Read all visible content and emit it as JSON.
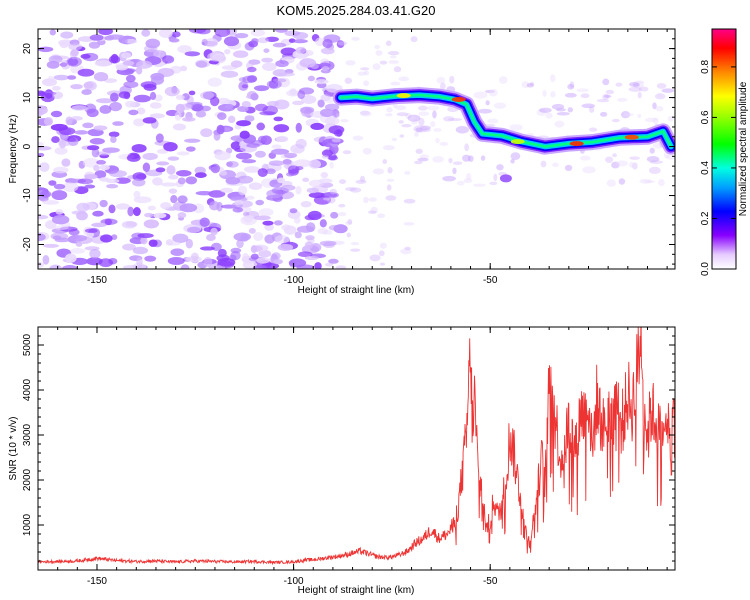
{
  "chart_data": [
    {
      "type": "heatmap",
      "title": "KOM5.2025.284.03.41.G20",
      "xlabel": "Height of straight line (km)",
      "ylabel": "Frequency (Hz)",
      "xlim": [
        -165,
        -3
      ],
      "ylim": [
        -25,
        24
      ],
      "xticks": [
        "-150",
        "-100",
        "-50"
      ],
      "xtick_values": [
        -150,
        -100,
        -50
      ],
      "yticks": [
        "20",
        "10",
        "0",
        "-10",
        "-20"
      ],
      "ytick_values": [
        20,
        10,
        0,
        -10,
        -20
      ],
      "ridge": [
        {
          "x": -88,
          "y": 10
        },
        {
          "x": -84,
          "y": 10.2
        },
        {
          "x": -80,
          "y": 9.8
        },
        {
          "x": -74,
          "y": 10.3
        },
        {
          "x": -68,
          "y": 10.5
        },
        {
          "x": -63,
          "y": 10.2
        },
        {
          "x": -59,
          "y": 9.6
        },
        {
          "x": -56,
          "y": 8.6
        },
        {
          "x": -54,
          "y": 5
        },
        {
          "x": -52,
          "y": 2.6
        },
        {
          "x": -47,
          "y": 2.2
        },
        {
          "x": -42,
          "y": 1
        },
        {
          "x": -36,
          "y": 0
        },
        {
          "x": -30,
          "y": 0.6
        },
        {
          "x": -24,
          "y": 0.9
        },
        {
          "x": -17,
          "y": 1.8
        },
        {
          "x": -10,
          "y": 2
        },
        {
          "x": -6,
          "y": 3.1
        },
        {
          "x": -4,
          "y": 0
        }
      ],
      "colorbar": {
        "label": "Normalized spectral amplitude",
        "ticks": [
          "0.0",
          "0.2",
          "0.4",
          "0.6",
          "0.8"
        ],
        "tick_values": [
          0,
          0.2,
          0.4,
          0.6,
          0.8
        ],
        "range": [
          0,
          0.95
        ]
      }
    },
    {
      "type": "line",
      "title": "",
      "xlabel": "Height of straight line (km)",
      "ylabel": "SNR (10 * v/v)",
      "xlim": [
        -165,
        -3
      ],
      "ylim": [
        0,
        5400
      ],
      "xticks": [
        "-150",
        "-100",
        "-50"
      ],
      "xtick_values": [
        -150,
        -100,
        -50
      ],
      "yticks": [
        "1000",
        "2000",
        "3000",
        "4000",
        "5000"
      ],
      "ytick_values": [
        1000,
        2000,
        3000,
        4000,
        5000
      ],
      "series": [
        {
          "name": "SNR",
          "color": "#ee3333",
          "x": [
            -165,
            -160,
            -155,
            -150,
            -145,
            -140,
            -135,
            -130,
            -125,
            -120,
            -115,
            -110,
            -105,
            -100,
            -97,
            -95,
            -93,
            -91,
            -89,
            -87,
            -85,
            -83,
            -81,
            -79,
            -77,
            -75,
            -73,
            -71,
            -69,
            -67,
            -65,
            -63,
            -61,
            -59,
            -58,
            -57,
            -56,
            -55.5,
            -55,
            -54.5,
            -54,
            -53.5,
            -53,
            -52,
            -51,
            -50,
            -49,
            -48,
            -47,
            -46,
            -45,
            -44,
            -43,
            -42,
            -41,
            -40,
            -39,
            -38,
            -37,
            -36,
            -35,
            -34.5,
            -34,
            -33,
            -32,
            -31,
            -30,
            -29,
            -28,
            -27,
            -26,
            -25,
            -24,
            -23,
            -22,
            -21,
            -20,
            -19,
            -18,
            -17,
            -16,
            -15,
            -14,
            -13,
            -12,
            -11.5,
            -11,
            -10.5,
            -10,
            -9,
            -8,
            -7,
            -6,
            -5.5,
            -5,
            -4.5,
            -4,
            -3.5,
            -3
          ],
          "values": [
            180,
            190,
            200,
            260,
            210,
            190,
            200,
            180,
            200,
            190,
            180,
            190,
            170,
            180,
            220,
            230,
            250,
            280,
            300,
            330,
            380,
            420,
            360,
            300,
            280,
            290,
            340,
            420,
            600,
            700,
            900,
            700,
            800,
            1000,
            1500,
            2200,
            3000,
            4000,
            4700,
            3200,
            3800,
            3000,
            2000,
            1800,
            900,
            1100,
            1600,
            1200,
            1500,
            2000,
            3000,
            2600,
            2000,
            1500,
            900,
            600,
            1100,
            1700,
            2500,
            2000,
            4000,
            4600,
            3700,
            3100,
            2400,
            2800,
            3300,
            2900,
            2700,
            3600,
            3400,
            3800,
            2600,
            3800,
            3400,
            3100,
            3600,
            3100,
            4200,
            3200,
            3400,
            3900,
            3600,
            4100,
            5000,
            5300,
            4300,
            3400,
            2900,
            3600,
            3300,
            3100,
            2700,
            3400,
            3900,
            2900,
            2000,
            4200,
            2400
          ]
        }
      ]
    }
  ]
}
